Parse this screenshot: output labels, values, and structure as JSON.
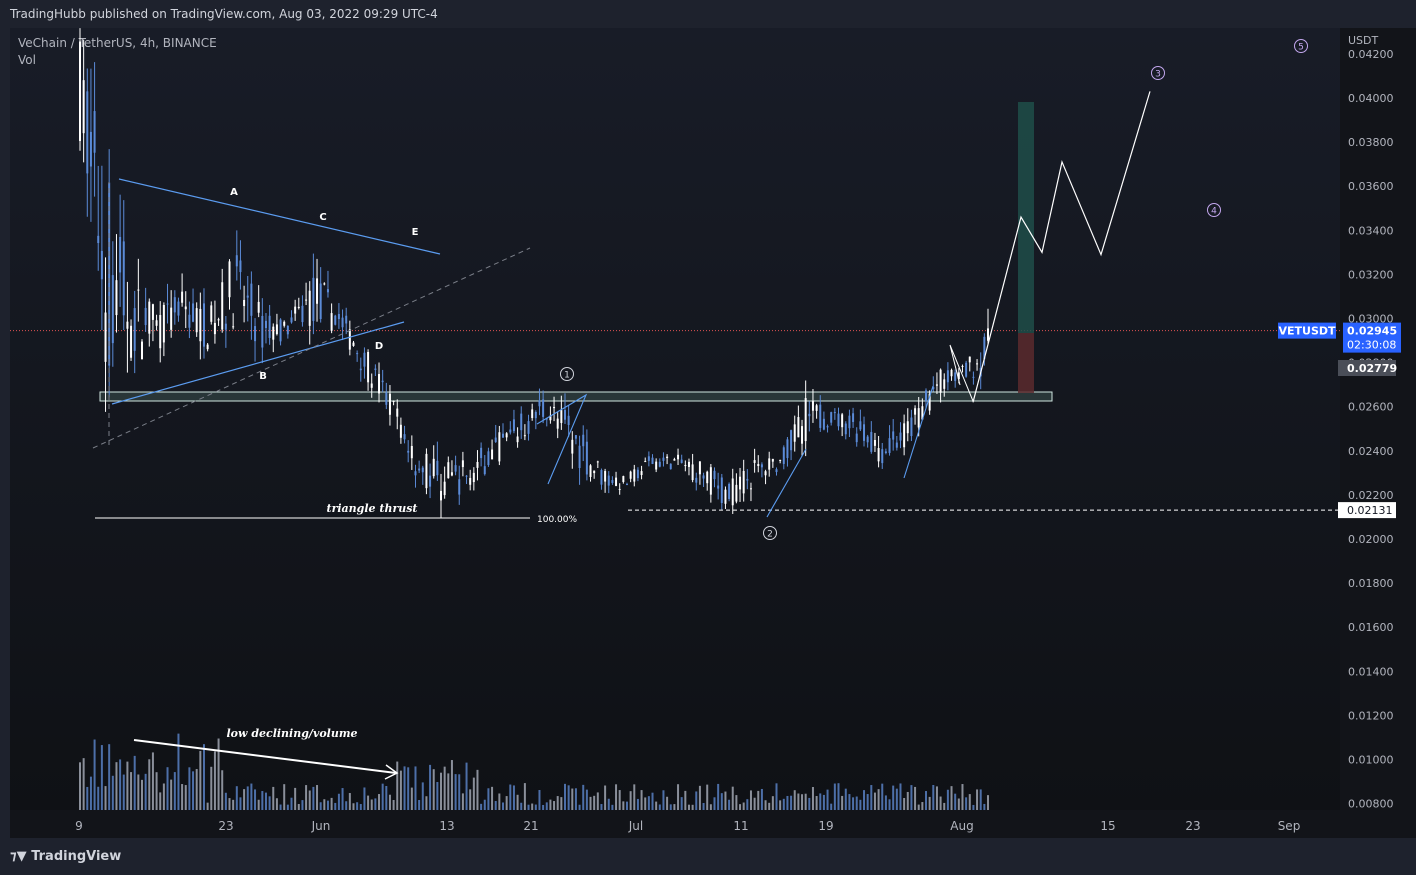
{
  "header": {
    "publisher": "TradingHubb published on TradingView.com, Aug 03, 2022 09:29 UTC-4"
  },
  "footer": {
    "brand": "TradingView",
    "logo_icon": "tradingview-logo-icon"
  },
  "legend": {
    "symbol_line": "VeChain / TetherUS, 4h, BINANCE",
    "indicator": "Vol"
  },
  "chart_data": {
    "type": "candlestick",
    "y_axis": {
      "unit": "USDT",
      "ticks": [
        "0.04200",
        "0.04000",
        "0.03800",
        "0.03600",
        "0.03400",
        "0.03200",
        "0.03000",
        "0.02800",
        "0.02600",
        "0.02400",
        "0.02200",
        "0.02000",
        "0.01800",
        "0.01600",
        "0.01400",
        "0.01200",
        "0.01000",
        "0.00800"
      ],
      "ylim": [
        0.0075,
        0.043
      ]
    },
    "x_axis": {
      "ticks": [
        "9",
        "23",
        "Jun",
        "13",
        "21",
        "Jul",
        "11",
        "19",
        "Aug",
        "15",
        "23",
        "Sep"
      ]
    },
    "price_labels": {
      "symbol": "VETUSDT",
      "last": "0.02945",
      "countdown": "02:30:08",
      "level_1": "0.02779",
      "level_2": "0.02131"
    },
    "annotations": {
      "triangle_points": [
        "A",
        "B",
        "C",
        "D",
        "E"
      ],
      "wave_labels": [
        "1",
        "2",
        "3",
        "4",
        "5"
      ],
      "triangle_text": "triangle thrust",
      "fib_text": "100.00%",
      "volume_text": "low declining/volume"
    },
    "colors": {
      "up": "#ffffff",
      "down": "#5b8bd8",
      "trendline": "#5b9cf0",
      "last_price": "#2962ff",
      "wave_label": "#c3a7ee",
      "target_zone": "#1f4d49",
      "stop_zone": "#5a2a2e"
    },
    "price_path": [
      [
        0.044,
        0.037
      ],
      [
        0.04,
        0.025
      ],
      [
        0.033,
        0.027
      ],
      [
        0.031,
        0.028
      ],
      [
        0.032,
        0.029
      ],
      [
        0.031,
        0.028
      ],
      [
        0.034,
        0.029
      ],
      [
        0.031,
        0.028
      ],
      [
        0.03,
        0.029
      ],
      [
        0.033,
        0.029
      ],
      [
        0.031,
        0.029
      ],
      [
        0.029,
        0.027
      ],
      [
        0.027,
        0.025
      ],
      [
        0.025,
        0.022
      ],
      [
        0.024,
        0.021
      ],
      [
        0.024,
        0.022
      ],
      [
        0.025,
        0.023
      ],
      [
        0.026,
        0.024
      ],
      [
        0.027,
        0.025
      ],
      [
        0.026,
        0.023
      ],
      [
        0.024,
        0.022
      ],
      [
        0.023,
        0.022
      ],
      [
        0.024,
        0.023
      ],
      [
        0.024,
        0.023
      ],
      [
        0.024,
        0.022
      ],
      [
        0.023,
        0.021
      ],
      [
        0.024,
        0.022
      ],
      [
        0.024,
        0.023
      ],
      [
        0.027,
        0.024
      ],
      [
        0.026,
        0.025
      ],
      [
        0.026,
        0.024
      ],
      [
        0.025,
        0.023
      ],
      [
        0.026,
        0.024
      ],
      [
        0.028,
        0.026
      ],
      [
        0.028,
        0.027
      ],
      [
        0.03,
        0.027
      ]
    ],
    "projection_path": [
      0.0262,
      0.0346,
      0.033,
      0.0371,
      0.0329,
      0.0403
    ]
  }
}
